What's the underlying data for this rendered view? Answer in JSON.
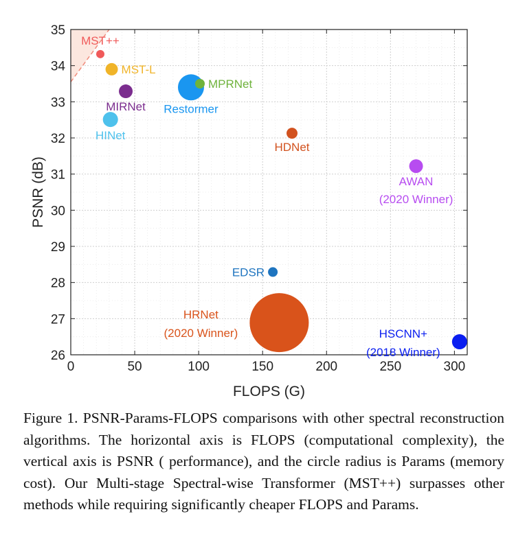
{
  "chart_data": {
    "type": "scatter",
    "xlabel": "FLOPS (G)",
    "ylabel": "PSNR (dB)",
    "xlim": [
      0,
      310
    ],
    "ylim": [
      26,
      35
    ],
    "xticks": [
      0,
      50,
      100,
      150,
      200,
      250,
      300
    ],
    "yticks": [
      26,
      27,
      28,
      29,
      30,
      31,
      32,
      33,
      34,
      35
    ],
    "grid": true,
    "grid_style": "dotted",
    "size_encodes": "Params (memory cost)",
    "highlight_region": {
      "color": "#fbe3d9",
      "border_color": "#f08a7a",
      "border_style": "dashed",
      "from": [
        0,
        33.55
      ],
      "to": [
        30,
        35
      ]
    },
    "points": [
      {
        "label": "MST++",
        "x": 23.1,
        "y": 34.32,
        "r": 6,
        "color": "#f05a5a",
        "label_pos": "above"
      },
      {
        "label": "MST-L",
        "x": 32,
        "y": 33.9,
        "r": 9,
        "color": "#f0b429",
        "label_pos": "right"
      },
      {
        "label": "MIRNet",
        "x": 43,
        "y": 33.29,
        "r": 10,
        "color": "#7b2d8e",
        "label_pos": "below"
      },
      {
        "label": "HINet",
        "x": 31,
        "y": 32.51,
        "r": 11,
        "color": "#4ec1ec",
        "label_pos": "below"
      },
      {
        "label": "MPRNet",
        "x": 101,
        "y": 33.5,
        "r": 7,
        "color": "#6fb33c",
        "label_pos": "right"
      },
      {
        "label": "Restormer",
        "x": 94,
        "y": 33.4,
        "r": 19,
        "color": "#1a96f0",
        "label_pos": "below"
      },
      {
        "label": "HDNet",
        "x": 173,
        "y": 32.13,
        "r": 8,
        "color": "#d2521f",
        "label_pos": "below"
      },
      {
        "label": "AWAN",
        "sublabel": "(2020 Winner)",
        "x": 270,
        "y": 31.22,
        "r": 10,
        "color": "#b74cf0",
        "label_pos": "below"
      },
      {
        "label": "EDSR",
        "x": 158,
        "y": 28.29,
        "r": 7,
        "color": "#1e74bf",
        "label_pos": "left"
      },
      {
        "label": "HRNet",
        "sublabel": "(2020 Winner)",
        "x": 163,
        "y": 26.89,
        "r": 43,
        "color": "#d9531b",
        "label_pos": "left"
      },
      {
        "label": "HSCNN+",
        "sublabel": "(2018 Winner)",
        "x": 304,
        "y": 26.36,
        "r": 11,
        "color": "#0a1ef0",
        "label_pos": "left"
      }
    ]
  },
  "caption": {
    "text": "Figure 1.  PSNR-Params-FLOPS comparisons with other spectral reconstruction algorithms.  The horizontal axis is FLOPS (computational complexity), the vertical axis is PSNR ( performance), and the circle radius is Params (memory cost). Our Multi-stage Spectral-wise Transformer (MST++) surpasses other methods while requiring significantly cheaper FLOPS and Params."
  }
}
